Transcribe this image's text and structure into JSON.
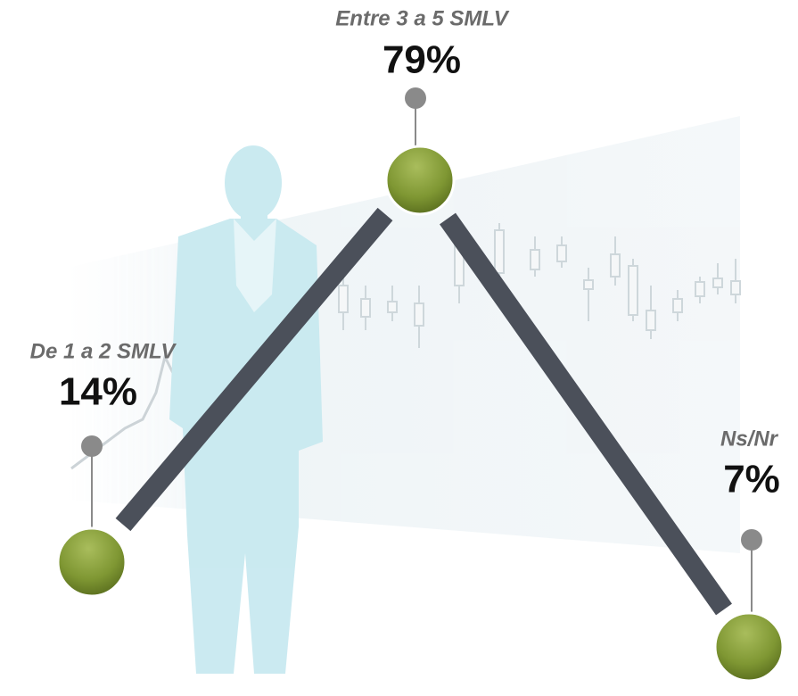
{
  "nodes": [
    {
      "label": "De 1 a 2 SMLV",
      "value": "14%"
    },
    {
      "label": "Entre 3 a 5 SMLV",
      "value": "79%"
    },
    {
      "label": "Ns/Nr",
      "value": "7%"
    }
  ]
}
